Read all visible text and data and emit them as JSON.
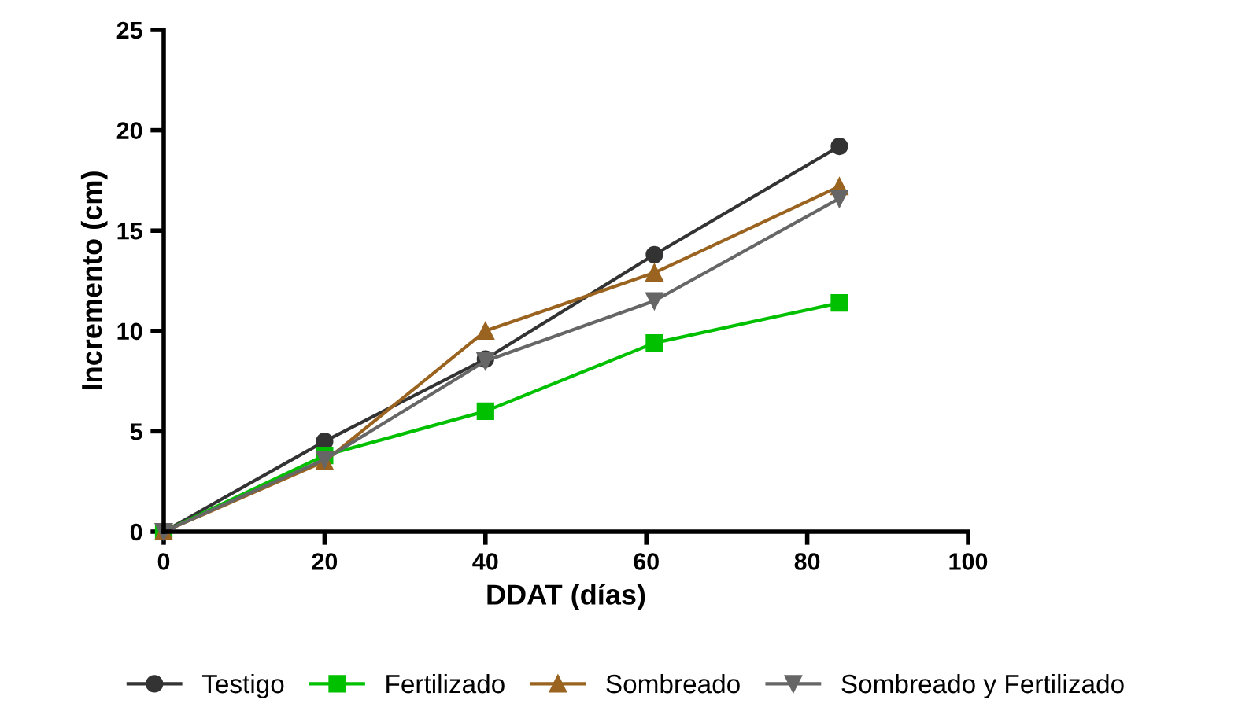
{
  "chart_data": {
    "type": "line",
    "xlabel": "DDAT (días)",
    "ylabel": "Incremento (cm)",
    "x": [
      0,
      20,
      40,
      61,
      84
    ],
    "xlim": [
      0,
      100
    ],
    "xticks": [
      0,
      20,
      40,
      60,
      80,
      100
    ],
    "ylim": [
      0,
      25
    ],
    "yticks": [
      0,
      5,
      10,
      15,
      20,
      25
    ],
    "grid": false,
    "legend": "bottom",
    "series": [
      {
        "name": "Testigo",
        "color": "#333333",
        "marker": "circle",
        "values": [
          0,
          4.5,
          8.6,
          13.8,
          19.2
        ]
      },
      {
        "name": "Fertilizado",
        "color": "#00c000",
        "marker": "square",
        "values": [
          0,
          3.8,
          6.0,
          9.4,
          11.4
        ]
      },
      {
        "name": "Sombreado",
        "color": "#9a6420",
        "marker": "triangle",
        "values": [
          0,
          3.5,
          10.0,
          12.9,
          17.2
        ]
      },
      {
        "name": "Sombreado y Fertilizado",
        "color": "#666666",
        "marker": "triangle_down",
        "values": [
          0,
          3.6,
          8.5,
          11.5,
          16.6
        ]
      }
    ]
  }
}
